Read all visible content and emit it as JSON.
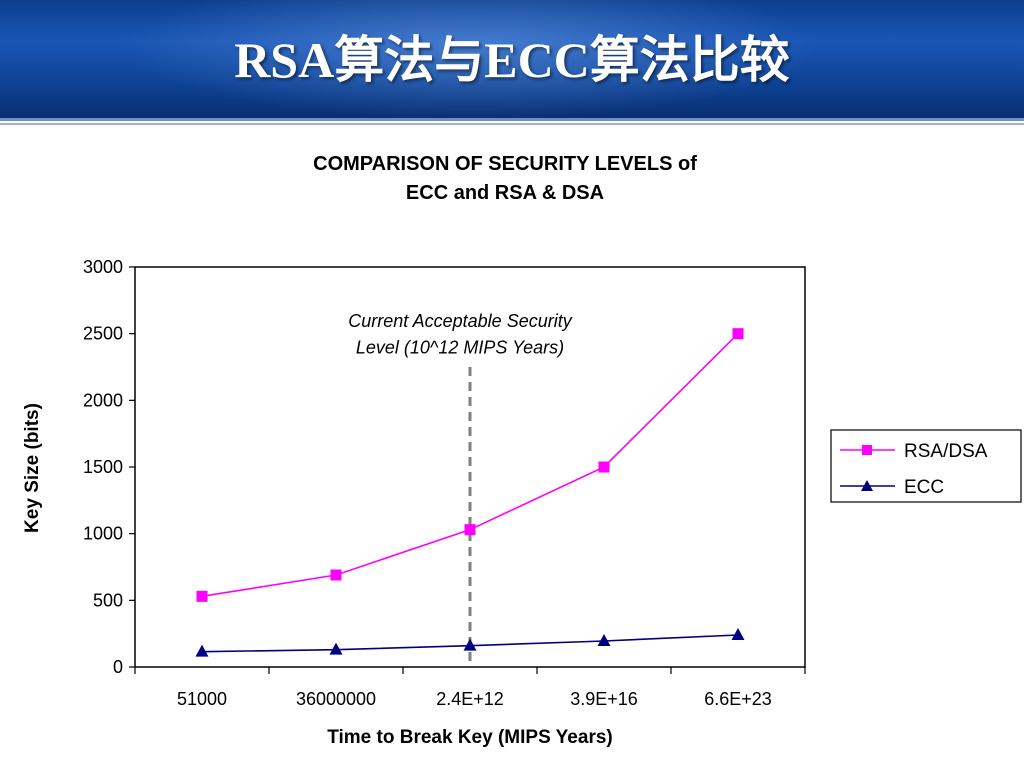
{
  "slide": {
    "title": "RSA算法与ECC算法比较",
    "header_color": "#1a4fa8"
  },
  "chart_data": {
    "type": "line",
    "title_line1": "COMPARISON OF SECURITY LEVELS of",
    "title_line2": "ECC and RSA & DSA",
    "xlabel": "Time to Break Key (MIPS Years)",
    "ylabel": "Key Size (bits)",
    "categories": [
      "51000",
      "36000000",
      "2.4E+12",
      "3.9E+16",
      "6.6E+23"
    ],
    "ylim": [
      0,
      3000
    ],
    "yticks": [
      0,
      500,
      1000,
      1500,
      2000,
      2500,
      3000
    ],
    "grid": false,
    "legend": "right",
    "series": [
      {
        "name": "RSA/DSA",
        "values": [
          530,
          690,
          1030,
          1500,
          2500
        ],
        "color": "#ff00ff",
        "marker": "square"
      },
      {
        "name": "ECC",
        "values": [
          115,
          130,
          160,
          195,
          240
        ],
        "color": "#000080",
        "marker": "triangle"
      }
    ],
    "annotation": {
      "line1": "Current Acceptable Security",
      "line2": "Level (10^12 MIPS Years)",
      "at_category": "2.4E+12"
    }
  }
}
